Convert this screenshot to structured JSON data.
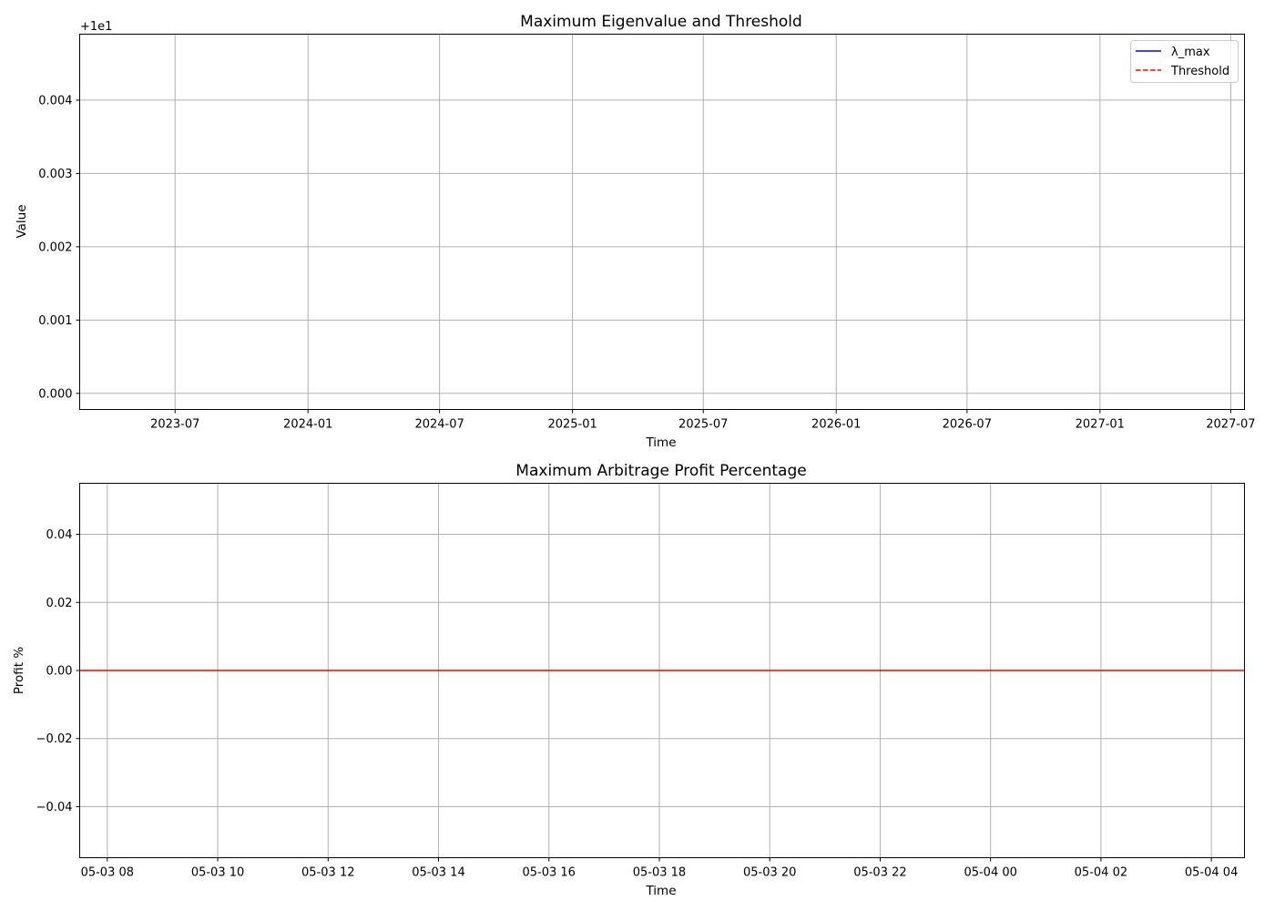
{
  "chart_data": [
    {
      "type": "line",
      "title": "Maximum Eigenvalue and Threshold",
      "xlabel": "Time",
      "ylabel": "Value",
      "y_offset_text": "+1e1",
      "grid": true,
      "legend_position": "top-right",
      "x_ticks": [
        "2023-07",
        "2024-01",
        "2024-07",
        "2025-01",
        "2025-07",
        "2026-01",
        "2026-07",
        "2027-01",
        "2027-07"
      ],
      "xlim": [
        "2023-02-19",
        "2027-07-20"
      ],
      "y_ticks": [
        0.0,
        0.001,
        0.002,
        0.003,
        0.004
      ],
      "y_tick_labels": [
        "0.000",
        "0.001",
        "0.002",
        "0.003",
        "0.004"
      ],
      "ylim": [
        -0.00022,
        0.0049
      ],
      "series": [
        {
          "name": "λ_max",
          "color": "#0000ff",
          "linestyle": "solid",
          "x": [],
          "y": []
        },
        {
          "name": "Threshold",
          "color": "#ff0000",
          "linestyle": "dashed",
          "x": [],
          "y": []
        }
      ]
    },
    {
      "type": "line",
      "title": "Maximum Arbitrage Profit Percentage",
      "xlabel": "Time",
      "ylabel": "Profit %",
      "grid": true,
      "x_ticks": [
        "05-03 08",
        "05-03 10",
        "05-03 12",
        "05-03 14",
        "05-03 16",
        "05-03 18",
        "05-03 20",
        "05-03 22",
        "05-04 00",
        "05-04 02",
        "05-04 04"
      ],
      "xlim": [
        "05-03 07:30",
        "05-04 04:36"
      ],
      "y_ticks": [
        -0.04,
        -0.02,
        0.0,
        0.02,
        0.04
      ],
      "y_tick_labels": [
        "−0.04",
        "−0.02",
        "0.00",
        "0.02",
        "0.04"
      ],
      "ylim": [
        -0.055,
        0.055
      ],
      "series": [
        {
          "color": "#ff0000",
          "linestyle": "solid",
          "x": [
            "05-03 07:30",
            "05-04 04:36"
          ],
          "y": [
            0,
            0
          ]
        }
      ]
    }
  ]
}
